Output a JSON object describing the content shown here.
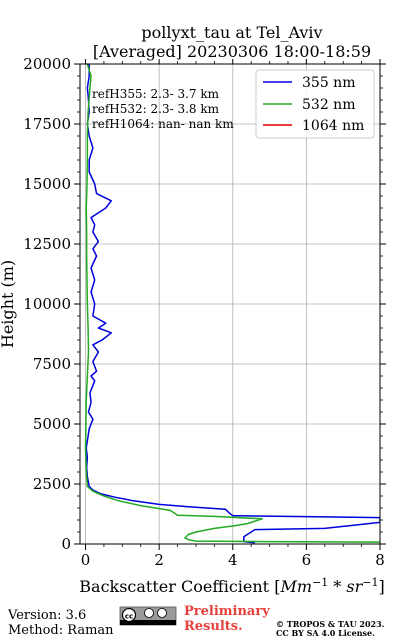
{
  "chart_data": {
    "type": "line",
    "title_line1": "pollyxt_tau at Tel_Aviv",
    "title_line2": "[Averaged] 20230306 18:00-18:59",
    "xlabel_prefix": "Backscatter Coefficient [",
    "xlabel_math": "Mm",
    "xlabel_exp1": "−1",
    "xlabel_mid": " * ",
    "xlabel_math2": "sr",
    "xlabel_exp2": "−1",
    "xlabel_suffix": "]",
    "ylabel": "Height (m)",
    "xlim": [
      -0.15,
      8
    ],
    "ylim": [
      0,
      20000
    ],
    "xticks": [
      0,
      2,
      4,
      6,
      8
    ],
    "xtick_labels": [
      "0",
      "2",
      "4",
      "6",
      "8"
    ],
    "yticks": [
      0,
      2500,
      5000,
      7500,
      10000,
      12500,
      15000,
      17500,
      20000
    ],
    "ytick_labels": [
      "0",
      "2500",
      "5000",
      "7500",
      "10000",
      "12500",
      "15000",
      "17500",
      "20000"
    ],
    "grid": true,
    "legend_position": "top-right",
    "annotations": [
      "refH355:  2.3- 3.7 km",
      "refH532:  2.3- 3.8 km",
      "refH1064:  nan- nan km"
    ],
    "series": [
      {
        "name": "355 nm",
        "color": "#0000dd",
        "points": [
          [
            4.6,
            50
          ],
          [
            4.3,
            100
          ],
          [
            4.3,
            300
          ],
          [
            4.5,
            500
          ],
          [
            4.6,
            600
          ],
          [
            6.5,
            650
          ],
          [
            8.0,
            900
          ],
          [
            8.0,
            1100
          ],
          [
            6.0,
            1140
          ],
          [
            4.0,
            1180
          ],
          [
            3.9,
            1300
          ],
          [
            3.8,
            1450
          ],
          [
            2.8,
            1550
          ],
          [
            2.0,
            1650
          ],
          [
            1.3,
            1800
          ],
          [
            0.8,
            1950
          ],
          [
            0.4,
            2100
          ],
          [
            0.2,
            2250
          ],
          [
            0.1,
            2400
          ],
          [
            0.05,
            2800
          ],
          [
            0.03,
            3200
          ],
          [
            0.05,
            3600
          ],
          [
            0.02,
            4000
          ],
          [
            0.06,
            4400
          ],
          [
            0.1,
            4800
          ],
          [
            0.2,
            5200
          ],
          [
            0.08,
            5500
          ],
          [
            0.15,
            5900
          ],
          [
            0.12,
            6300
          ],
          [
            0.25,
            6800
          ],
          [
            0.15,
            7000
          ],
          [
            0.3,
            7200
          ],
          [
            0.2,
            7600
          ],
          [
            0.35,
            8000
          ],
          [
            0.2,
            8300
          ],
          [
            0.45,
            8500
          ],
          [
            0.7,
            8800
          ],
          [
            0.35,
            9000
          ],
          [
            0.55,
            9200
          ],
          [
            0.2,
            9500
          ],
          [
            0.25,
            10000
          ],
          [
            0.15,
            10500
          ],
          [
            0.25,
            11000
          ],
          [
            0.15,
            11500
          ],
          [
            0.3,
            12000
          ],
          [
            0.2,
            12300
          ],
          [
            0.35,
            12600
          ],
          [
            0.2,
            13000
          ],
          [
            0.25,
            13300
          ],
          [
            0.15,
            13600
          ],
          [
            0.55,
            14000
          ],
          [
            0.7,
            14300
          ],
          [
            0.3,
            14600
          ],
          [
            0.25,
            15000
          ],
          [
            0.1,
            15500
          ],
          [
            0.1,
            16000
          ],
          [
            0.2,
            16500
          ],
          [
            0.1,
            17000
          ],
          [
            0.05,
            17500
          ],
          [
            0.1,
            18000
          ],
          [
            0.08,
            18500
          ],
          [
            0.05,
            19000
          ],
          [
            0.1,
            19500
          ],
          [
            0.1,
            20000
          ]
        ]
      },
      {
        "name": "532 nm",
        "color": "#22aa22",
        "points": [
          [
            8.0,
            80
          ],
          [
            5.0,
            100
          ],
          [
            3.0,
            120
          ],
          [
            2.8,
            180
          ],
          [
            2.7,
            250
          ],
          [
            2.8,
            400
          ],
          [
            3.0,
            500
          ],
          [
            3.5,
            650
          ],
          [
            4.0,
            750
          ],
          [
            4.4,
            850
          ],
          [
            4.8,
            1050
          ],
          [
            3.5,
            1150
          ],
          [
            2.5,
            1200
          ],
          [
            2.4,
            1300
          ],
          [
            2.3,
            1400
          ],
          [
            1.5,
            1600
          ],
          [
            0.9,
            1800
          ],
          [
            0.5,
            2000
          ],
          [
            0.2,
            2200
          ],
          [
            0.05,
            2400
          ],
          [
            0.02,
            3000
          ],
          [
            0.0,
            4000
          ],
          [
            0.01,
            5000
          ],
          [
            0.02,
            6000
          ],
          [
            0.05,
            7000
          ],
          [
            0.08,
            8000
          ],
          [
            0.07,
            9000
          ],
          [
            0.05,
            10000
          ],
          [
            0.04,
            11000
          ],
          [
            0.03,
            12000
          ],
          [
            0.03,
            13000
          ],
          [
            0.02,
            14000
          ],
          [
            0.04,
            15000
          ],
          [
            0.05,
            16000
          ],
          [
            0.05,
            17000
          ],
          [
            0.07,
            18000
          ],
          [
            0.12,
            19000
          ],
          [
            0.15,
            19500
          ],
          [
            0.05,
            20000
          ]
        ]
      },
      {
        "name": "1064 nm",
        "color": "#dd0000",
        "points": []
      }
    ]
  },
  "footer": {
    "version": "Version: 3.6",
    "method": "Method: Raman",
    "preliminary_line1": "Preliminary",
    "preliminary_line2": "Results.",
    "copyright_line1": "© TROPOS & TAU 2023.",
    "copyright_line2": "CC BY SA 4.0 License."
  }
}
